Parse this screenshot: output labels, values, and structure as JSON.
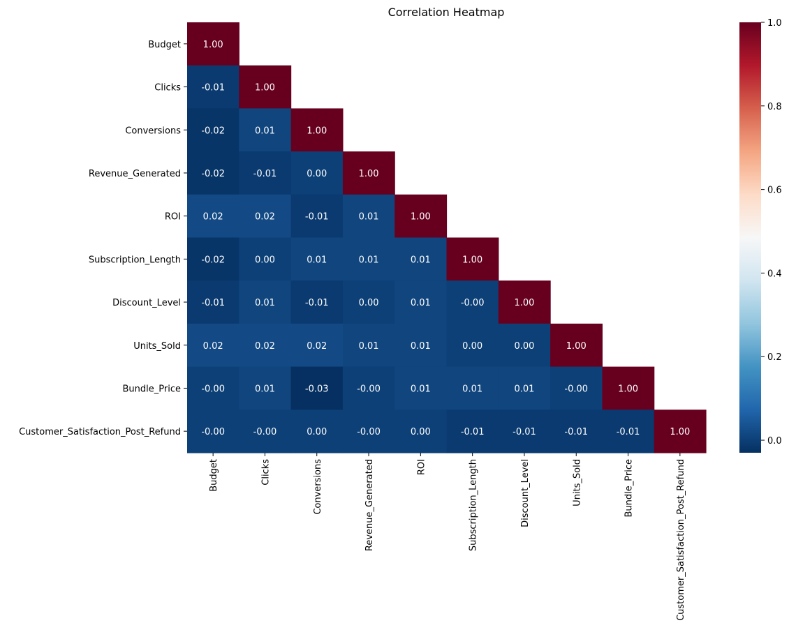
{
  "chart_data": {
    "type": "heatmap",
    "title": "Correlation Heatmap",
    "labels": [
      "Budget",
      "Clicks",
      "Conversions",
      "Revenue_Generated",
      "ROI",
      "Subscription_Length",
      "Discount_Level",
      "Units_Sold",
      "Bundle_Price",
      "Customer_Satisfaction_Post_Refund"
    ],
    "matrix": [
      [
        1.0
      ],
      [
        -0.01,
        1.0
      ],
      [
        -0.02,
        0.01,
        1.0
      ],
      [
        -0.02,
        -0.01,
        0.0,
        1.0
      ],
      [
        0.02,
        0.02,
        -0.01,
        0.01,
        1.0
      ],
      [
        -0.02,
        0.0,
        0.01,
        0.01,
        0.01,
        1.0
      ],
      [
        -0.01,
        0.01,
        -0.01,
        0.0,
        0.01,
        -0.0,
        1.0
      ],
      [
        0.02,
        0.02,
        0.02,
        0.01,
        0.01,
        0.0,
        0.0,
        1.0
      ],
      [
        -0.0,
        0.01,
        -0.03,
        -0.0,
        0.01,
        0.01,
        0.01,
        -0.0,
        1.0
      ],
      [
        -0.0,
        -0.0,
        0.0,
        -0.0,
        0.0,
        -0.01,
        -0.01,
        -0.01,
        -0.01,
        1.0
      ]
    ],
    "annotation_format": "0.00",
    "mask": "upper triangle (above diagonal) hidden",
    "colormap": "RdBu_r",
    "vmin": -0.03,
    "vmax": 1.0,
    "colorbar": {
      "ticks": [
        0.0,
        0.2,
        0.4,
        0.6,
        0.8,
        1.0
      ],
      "tick_labels": [
        "0.0",
        "0.2",
        "0.4",
        "0.6",
        "0.8",
        "1.0"
      ]
    }
  }
}
